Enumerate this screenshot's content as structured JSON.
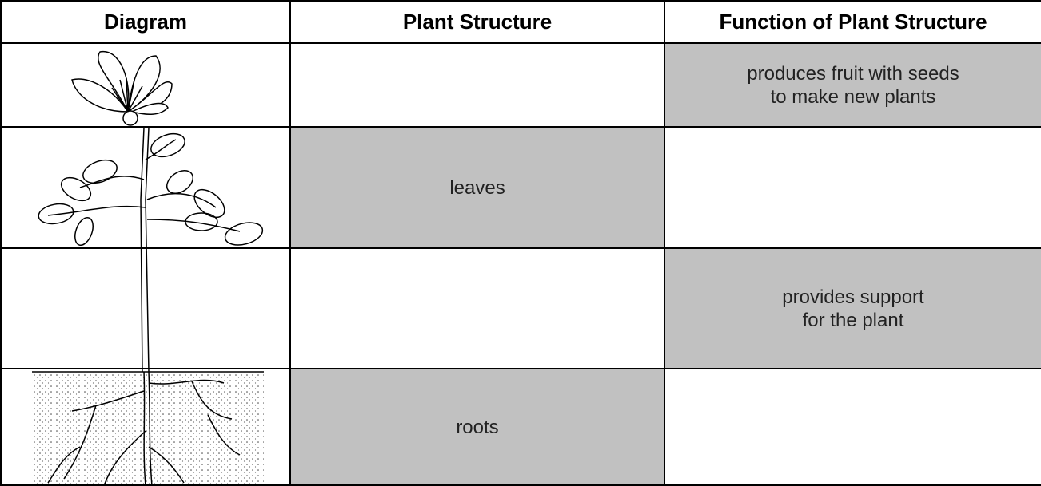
{
  "header": {
    "columns": [
      "Diagram",
      "Plant Structure",
      "Function of Plant Structure"
    ]
  },
  "table": {
    "rows": [
      {
        "function": [
          "produces fruit with seeds",
          "to make new plants"
        ]
      },
      {
        "structure": "leaves"
      },
      {
        "function": [
          "provides support",
          "for the plant"
        ]
      },
      {
        "structure": "roots"
      }
    ]
  }
}
